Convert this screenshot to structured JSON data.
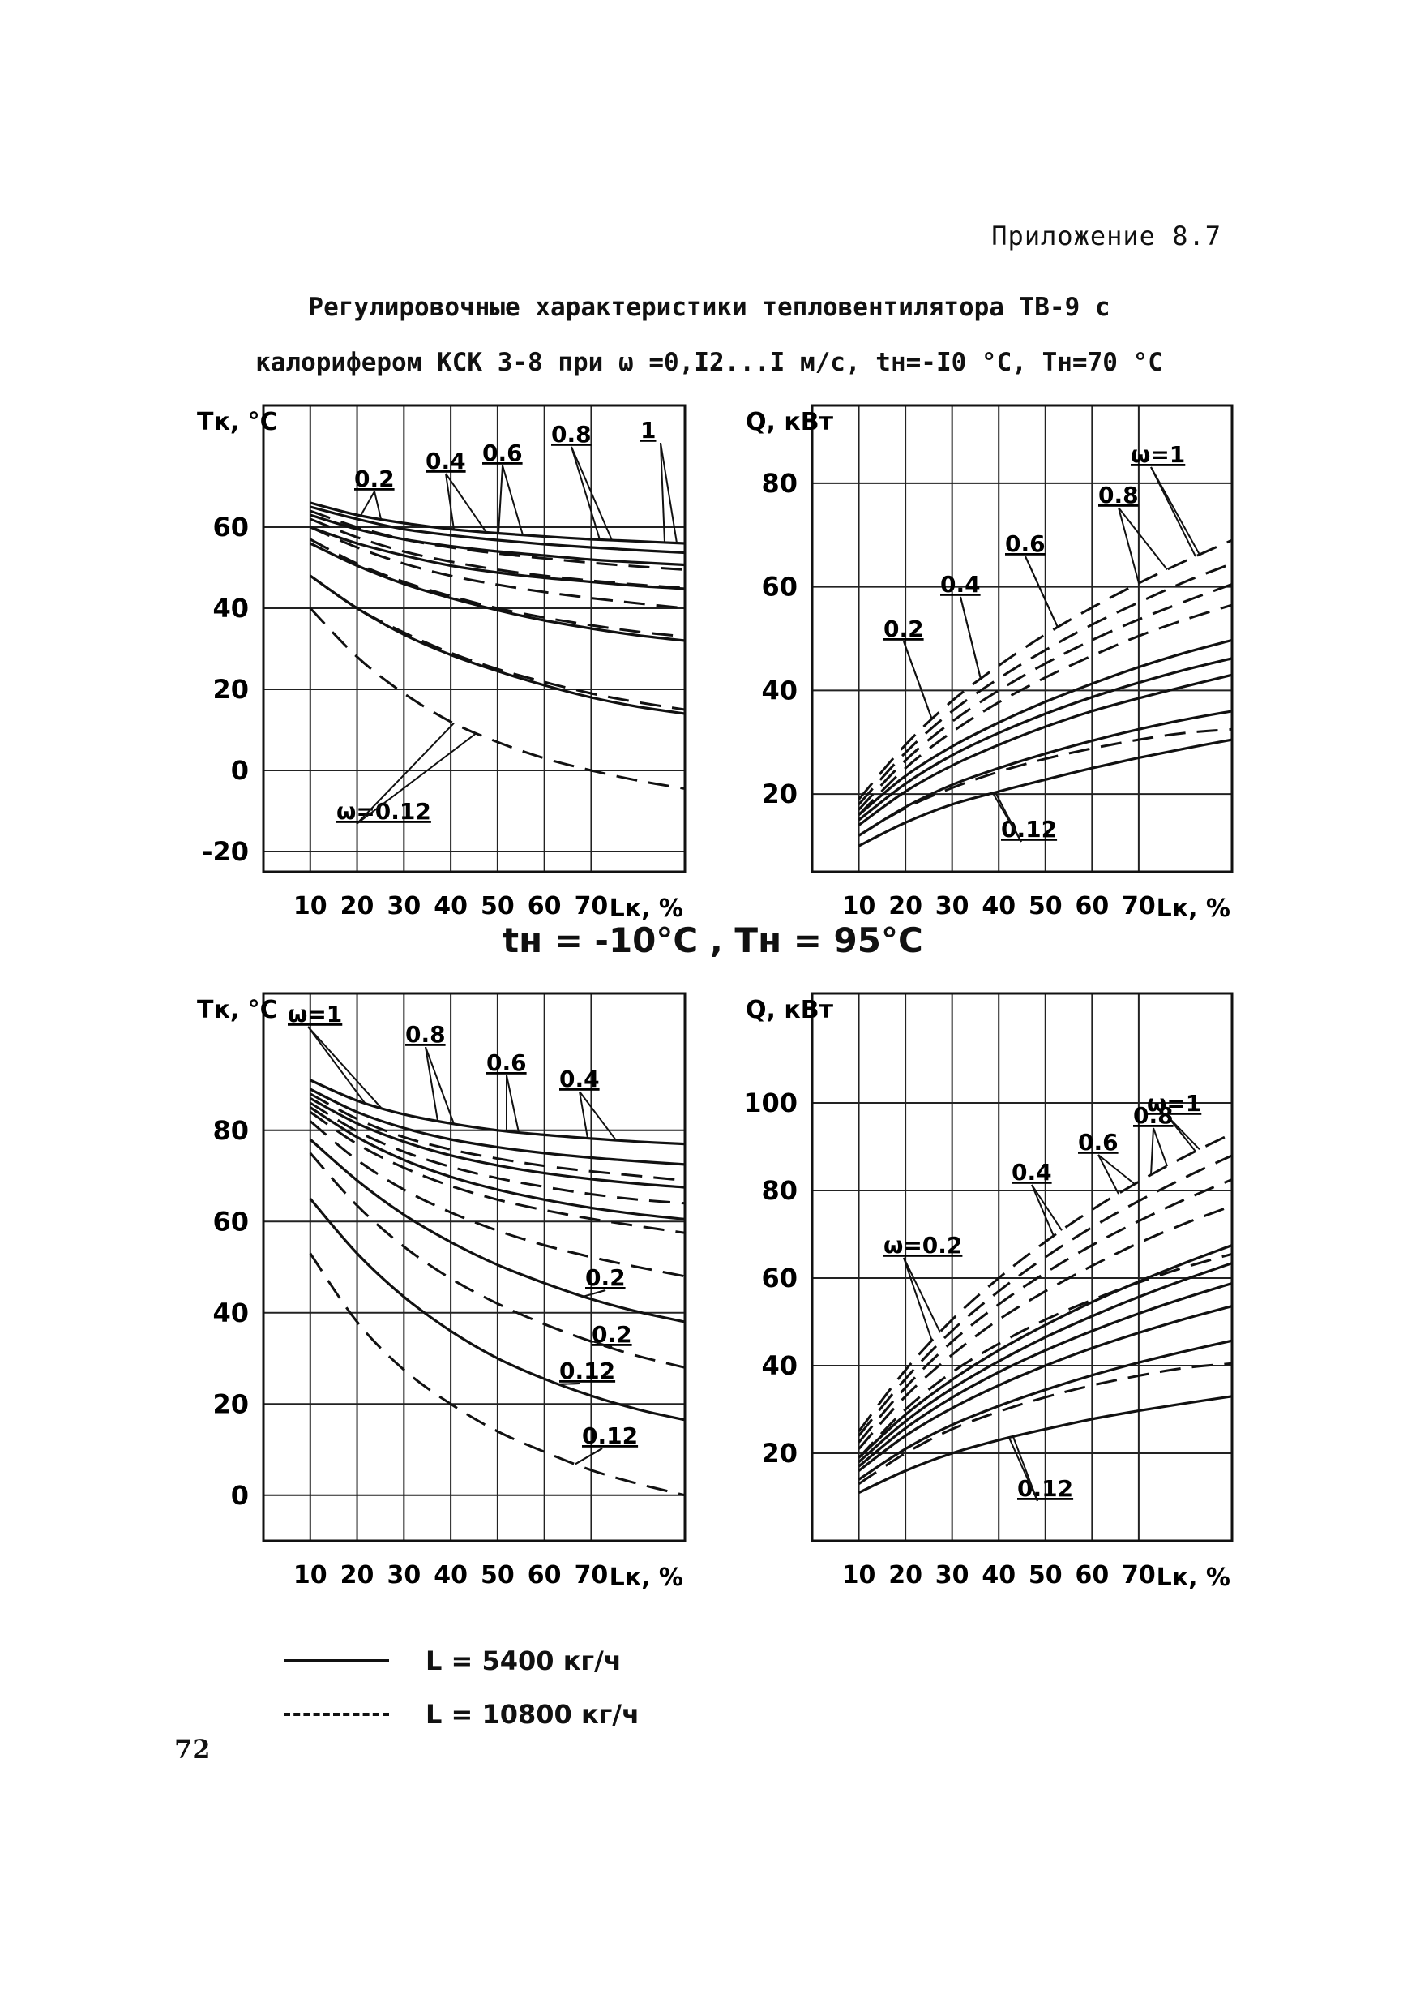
{
  "page": {
    "appendix": "Приложение 8.7",
    "title_line1": "Регулировочные характеристики тепловентилятора ТВ-9 с",
    "title_line2": "калорифером КСК 3-8 при ω =0,I2...I м/с,  tн=-I0 °С,  Тн=70 °С",
    "between_caption": "tн = -10°С   ,  Тн = 95°С",
    "page_number": "72"
  },
  "legend": [
    {
      "label": "L = 5400 кг/ч",
      "style": "solid"
    },
    {
      "label": "L = 10800 кг/ч",
      "style": "dashed"
    }
  ],
  "chart_data": [
    {
      "id": "p1",
      "type": "line",
      "conditions": "tн=-10 °С, Тн=70 °С",
      "ylabel": "Тк, °С",
      "xlabel": "Lк, %",
      "xlim": [
        0,
        90
      ],
      "ylim": [
        -25,
        90
      ],
      "xticks": [
        "10",
        "20",
        "30",
        "40",
        "50",
        "60",
        "70"
      ],
      "yticks": [
        {
          "v": -20,
          "t": "-20"
        },
        {
          "v": 0,
          "t": "0"
        },
        {
          "v": 20,
          "t": "20"
        },
        {
          "v": 40,
          "t": "40"
        },
        {
          "v": 60,
          "t": "60"
        }
      ],
      "x": [
        10,
        20,
        30,
        40,
        50,
        60,
        70,
        80,
        90
      ],
      "series": [
        {
          "omega": "1",
          "flow": "5400",
          "dashed": false,
          "y": [
            66,
            63,
            61,
            59.5,
            58.5,
            57.7,
            57,
            56.5,
            56
          ]
        },
        {
          "omega": "0.8",
          "flow": "5400",
          "dashed": false,
          "y": [
            65,
            62,
            59.5,
            58,
            56.8,
            55.8,
            55,
            54.3,
            53.7
          ]
        },
        {
          "omega": "0.6",
          "flow": "5400",
          "dashed": false,
          "y": [
            63,
            59.5,
            57,
            55.3,
            54,
            53,
            52,
            51.3,
            50.7
          ]
        },
        {
          "omega": "0.4",
          "flow": "5400",
          "dashed": false,
          "y": [
            60,
            56,
            53,
            50.5,
            48.8,
            47.5,
            46.5,
            45.5,
            44.8
          ]
        },
        {
          "omega": "0.2",
          "flow": "5400",
          "dashed": false,
          "y": [
            56,
            50.5,
            46,
            42.5,
            39.5,
            37,
            35,
            33.3,
            32
          ]
        },
        {
          "omega": "0.12",
          "flow": "5400",
          "dashed": false,
          "y": [
            48,
            40,
            33.5,
            28.5,
            24.5,
            21,
            18,
            15.7,
            14
          ]
        },
        {
          "omega": "1",
          "flow": "10800",
          "dashed": true,
          "y": [
            64,
            60,
            57,
            55,
            53.5,
            52.3,
            51.2,
            50.3,
            49.5
          ]
        },
        {
          "omega": "0.8",
          "flow": "10800",
          "dashed": true,
          "y": [
            62,
            57.5,
            54,
            51.5,
            49.5,
            48,
            46.8,
            45.8,
            45
          ]
        },
        {
          "omega": "0.6",
          "flow": "10800",
          "dashed": true,
          "y": [
            60,
            55,
            51,
            48,
            45.8,
            44,
            42.5,
            41.2,
            40
          ]
        },
        {
          "omega": "0.4",
          "flow": "10800",
          "dashed": true,
          "y": [
            57,
            51,
            46.5,
            43,
            40,
            37.7,
            35.8,
            34.2,
            33
          ]
        },
        {
          "omega": "0.2",
          "flow": "10800",
          "dashed": true,
          "y": [
            48,
            40,
            34,
            29,
            25,
            21.8,
            19,
            16.8,
            15
          ]
        },
        {
          "omega": "0.12",
          "flow": "10800",
          "dashed": true,
          "y": [
            40,
            28,
            19,
            12,
            7,
            3,
            0,
            -2.5,
            -4.5
          ]
        }
      ],
      "annotations": [
        "ω=0.12",
        "0.2",
        "0.4",
        "0.6",
        "0.8",
        "1"
      ]
    },
    {
      "id": "p2",
      "type": "line",
      "conditions": "tн=-10 °С, Тн=70 °С",
      "ylabel": "Q, кВт",
      "xlabel": "Lк, %",
      "xlim": [
        0,
        90
      ],
      "ylim": [
        5,
        95
      ],
      "xticks": [
        "10",
        "20",
        "30",
        "40",
        "50",
        "60",
        "70"
      ],
      "yticks": [
        {
          "v": 20,
          "t": "20"
        },
        {
          "v": 40,
          "t": "40"
        },
        {
          "v": 60,
          "t": "60"
        },
        {
          "v": 80,
          "t": "80"
        }
      ],
      "x": [
        10,
        20,
        30,
        40,
        50,
        60,
        70,
        80,
        90
      ],
      "series": [
        {
          "omega": "0.12",
          "flow": "5400",
          "dashed": false,
          "y": [
            10,
            14.5,
            18,
            20.5,
            22.8,
            25,
            27,
            28.8,
            30.5
          ]
        },
        {
          "omega": "0.2",
          "flow": "5400",
          "dashed": false,
          "y": [
            12,
            17.5,
            21.8,
            25,
            27.8,
            30.3,
            32.5,
            34.4,
            36
          ]
        },
        {
          "omega": "0.4",
          "flow": "5400",
          "dashed": false,
          "y": [
            14,
            20.5,
            25.5,
            29.5,
            33,
            36,
            38.5,
            40.8,
            43
          ]
        },
        {
          "omega": "0.6",
          "flow": "5400",
          "dashed": false,
          "y": [
            15,
            22,
            27.5,
            31.8,
            35.5,
            38.7,
            41.5,
            44,
            46.2
          ]
        },
        {
          "omega": "0.8",
          "flow": "5400",
          "dashed": false,
          "y": [
            16,
            23.5,
            29.2,
            33.8,
            37.8,
            41.3,
            44.5,
            47.3,
            49.7
          ]
        },
        {
          "omega": "0.12",
          "flow": "10800",
          "dashed": true,
          "y": [
            12,
            17.3,
            21.2,
            24.3,
            26.8,
            28.8,
            30.5,
            31.8,
            32.5
          ]
        },
        {
          "omega": "0.4",
          "flow": "10800",
          "dashed": true,
          "y": [
            16,
            25,
            32,
            37.7,
            42.5,
            46.7,
            50.5,
            53.7,
            56.5
          ]
        },
        {
          "omega": "0.6",
          "flow": "10800",
          "dashed": true,
          "y": [
            17,
            26.5,
            34,
            40,
            45.2,
            49.7,
            53.7,
            57.2,
            60.5
          ]
        },
        {
          "omega": "0.8",
          "flow": "10800",
          "dashed": true,
          "y": [
            18,
            28,
            36,
            42.3,
            47.8,
            52.7,
            57,
            61,
            64.5
          ]
        },
        {
          "omega": "1",
          "flow": "10800",
          "dashed": true,
          "y": [
            19,
            29.5,
            38,
            44.8,
            50.8,
            56,
            60.7,
            65,
            69
          ]
        }
      ],
      "annotations": [
        "ω=1",
        "0.8",
        "0.6",
        "0.4",
        "0.2",
        "0.12"
      ]
    },
    {
      "id": "p3",
      "type": "line",
      "conditions": "tн=-10°С, Тн=95°С",
      "ylabel": "Тк, °С",
      "xlabel": "Lк, %",
      "xlim": [
        0,
        90
      ],
      "ylim": [
        -10,
        110
      ],
      "xticks": [
        "10",
        "20",
        "30",
        "40",
        "50",
        "60",
        "70"
      ],
      "yticks": [
        {
          "v": 0,
          "t": "0"
        },
        {
          "v": 20,
          "t": "20"
        },
        {
          "v": 40,
          "t": "40"
        },
        {
          "v": 60,
          "t": "60"
        },
        {
          "v": 80,
          "t": "80"
        }
      ],
      "x": [
        10,
        20,
        30,
        40,
        50,
        60,
        70,
        80,
        90
      ],
      "series": [
        {
          "omega": "1",
          "flow": "5400",
          "dashed": false,
          "y": [
            91,
            86.5,
            83.5,
            81.5,
            80,
            79,
            78.2,
            77.5,
            77
          ]
        },
        {
          "omega": "0.8",
          "flow": "5400",
          "dashed": false,
          "y": [
            89,
            84,
            80.5,
            78,
            76.3,
            75,
            74,
            73.2,
            72.5
          ]
        },
        {
          "omega": "0.6",
          "flow": "5400",
          "dashed": false,
          "y": [
            87,
            81.5,
            77.5,
            74.5,
            72.3,
            70.6,
            69.3,
            68.3,
            67.5
          ]
        },
        {
          "omega": "0.4",
          "flow": "5400",
          "dashed": false,
          "y": [
            85,
            78.5,
            73.5,
            69.8,
            67,
            64.8,
            63,
            61.6,
            60.5
          ]
        },
        {
          "omega": "0.2",
          "flow": "5400",
          "dashed": false,
          "y": [
            78,
            69,
            61.5,
            55.5,
            50.5,
            46.5,
            43,
            40.2,
            38
          ]
        },
        {
          "omega": "0.12",
          "flow": "5400",
          "dashed": false,
          "y": [
            65,
            53,
            43.5,
            36,
            30,
            25.5,
            21.8,
            18.8,
            16.5
          ]
        },
        {
          "omega": "1",
          "flow": "10800",
          "dashed": true,
          "y": [
            88,
            82.5,
            78.5,
            75.8,
            73.8,
            72.2,
            71,
            70,
            69
          ]
        },
        {
          "omega": "0.8",
          "flow": "10800",
          "dashed": true,
          "y": [
            86,
            79.8,
            75.3,
            72,
            69.5,
            67.6,
            66,
            64.8,
            64
          ]
        },
        {
          "omega": "0.6",
          "flow": "10800",
          "dashed": true,
          "y": [
            84,
            77,
            71.8,
            67.8,
            64.8,
            62.5,
            60.6,
            59,
            57.5
          ]
        },
        {
          "omega": "0.4",
          "flow": "10800",
          "dashed": true,
          "y": [
            82,
            73.5,
            67,
            62,
            58,
            54.8,
            52.2,
            50,
            48
          ]
        },
        {
          "omega": "0.2",
          "flow": "10800",
          "dashed": true,
          "y": [
            75,
            63.5,
            54.5,
            47.5,
            42,
            37.5,
            33.7,
            30.5,
            28
          ]
        },
        {
          "omega": "0.12",
          "flow": "10800",
          "dashed": true,
          "y": [
            53,
            38,
            27.5,
            20,
            14,
            9.5,
            5.5,
            2.5,
            0
          ]
        }
      ],
      "annotations": [
        "ω=1",
        "0.8",
        "0.6",
        "0.4",
        "0.2",
        "0.2",
        "0.12",
        "0.12"
      ]
    },
    {
      "id": "p4",
      "type": "line",
      "conditions": "tн=-10°С, Тн=95°С",
      "ylabel": "Q, кВт",
      "xlabel": "Lк, %",
      "xlim": [
        0,
        90
      ],
      "ylim": [
        0,
        125
      ],
      "xticks": [
        "10",
        "20",
        "30",
        "40",
        "50",
        "60",
        "70"
      ],
      "yticks": [
        {
          "v": 20,
          "t": "20"
        },
        {
          "v": 40,
          "t": "40"
        },
        {
          "v": 60,
          "t": "60"
        },
        {
          "v": 80,
          "t": "80"
        },
        {
          "v": 100,
          "t": "100"
        }
      ],
      "x": [
        10,
        20,
        30,
        40,
        50,
        60,
        70,
        80,
        90
      ],
      "series": [
        {
          "omega": "0.12",
          "flow": "5400",
          "dashed": false,
          "y": [
            11,
            16,
            20,
            23,
            25.5,
            27.8,
            29.7,
            31.4,
            33
          ]
        },
        {
          "omega": "0.2",
          "flow": "5400",
          "dashed": false,
          "y": [
            14,
            21,
            26.5,
            30.8,
            34.5,
            37.8,
            40.7,
            43.3,
            45.7
          ]
        },
        {
          "omega": "0.4",
          "flow": "5400",
          "dashed": false,
          "y": [
            16,
            24,
            30.3,
            35.5,
            40,
            44,
            47.5,
            50.7,
            53.6
          ]
        },
        {
          "omega": "0.6",
          "flow": "5400",
          "dashed": false,
          "y": [
            17,
            25.7,
            32.7,
            38.5,
            43.5,
            47.9,
            51.9,
            55.5,
            58.8
          ]
        },
        {
          "omega": "0.8",
          "flow": "5400",
          "dashed": false,
          "y": [
            18,
            27.3,
            34.8,
            41,
            46.5,
            51.3,
            55.7,
            59.7,
            63.4
          ]
        },
        {
          "omega": "1",
          "flow": "5400",
          "dashed": false,
          "y": [
            19,
            28.8,
            36.8,
            43.5,
            49.3,
            54.5,
            59.2,
            63.5,
            67.5
          ]
        },
        {
          "omega": "0.12",
          "flow": "10800",
          "dashed": true,
          "y": [
            13,
            20,
            25.5,
            29.5,
            32.8,
            35.5,
            37.7,
            39.5,
            40.5
          ]
        },
        {
          "omega": "0.2",
          "flow": "10800",
          "dashed": true,
          "y": [
            19,
            30,
            38.5,
            45,
            50.5,
            55,
            59,
            62.5,
            65.5
          ]
        },
        {
          "omega": "0.4",
          "flow": "10800",
          "dashed": true,
          "y": [
            21,
            33,
            42.5,
            50.5,
            57,
            62.8,
            68,
            72.5,
            76.5
          ]
        },
        {
          "omega": "0.6",
          "flow": "10800",
          "dashed": true,
          "y": [
            22.5,
            35,
            45.5,
            54,
            61.2,
            67.5,
            73,
            78,
            82.5
          ]
        },
        {
          "omega": "0.8",
          "flow": "10800",
          "dashed": true,
          "y": [
            24,
            37,
            48,
            57,
            64.8,
            71.6,
            77.6,
            83,
            88
          ]
        },
        {
          "omega": "1",
          "flow": "10800",
          "dashed": true,
          "y": [
            25,
            39,
            50.5,
            60,
            68.3,
            75.6,
            82,
            87.8,
            93
          ]
        }
      ],
      "annotations": [
        "ω=1",
        "0.8",
        "0.6",
        "0.4",
        "ω=0.2",
        "0.12"
      ]
    }
  ]
}
